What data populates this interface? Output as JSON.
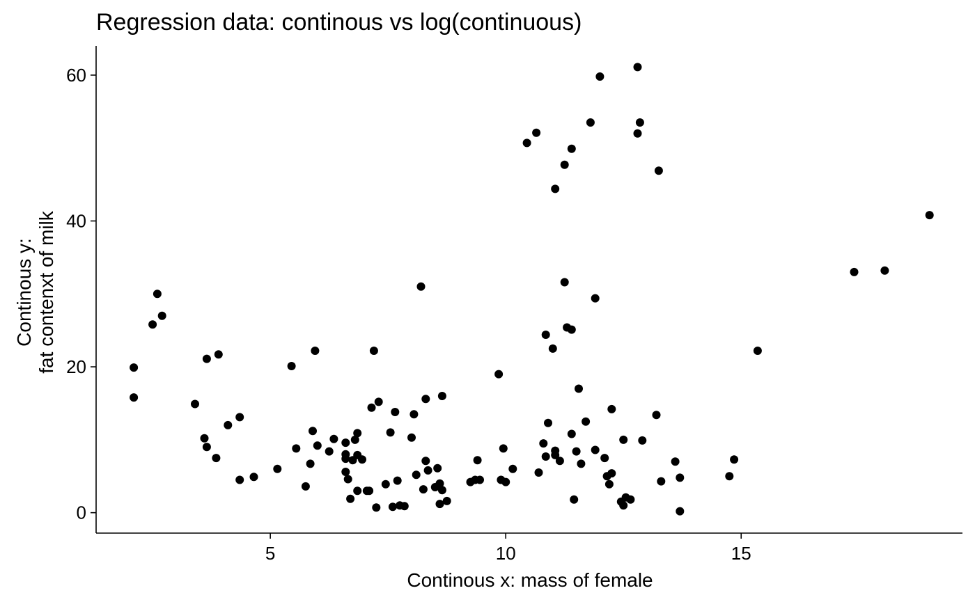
{
  "chart_data": {
    "type": "scatter",
    "title": "Regression data: continous vs log(continuous)",
    "xlabel": "Continous x: mass of female",
    "ylabel_lines": [
      "Continous y:",
      "fat contenxt of milk"
    ],
    "x_ticks": [
      5,
      10,
      15
    ],
    "y_ticks": [
      0,
      20,
      40,
      60
    ],
    "xlim": [
      1.3,
      19.7
    ],
    "ylim": [
      -2.8,
      64.0
    ],
    "grid": false,
    "legend": "none",
    "point_color": "#000000",
    "points": [
      {
        "x": 2.1,
        "y": 19.9
      },
      {
        "x": 2.1,
        "y": 15.8
      },
      {
        "x": 2.5,
        "y": 25.8
      },
      {
        "x": 2.6,
        "y": 30.0
      },
      {
        "x": 2.7,
        "y": 27.0
      },
      {
        "x": 3.4,
        "y": 14.9
      },
      {
        "x": 3.6,
        "y": 10.2
      },
      {
        "x": 3.65,
        "y": 21.1
      },
      {
        "x": 3.65,
        "y": 9.0
      },
      {
        "x": 3.85,
        "y": 7.5
      },
      {
        "x": 3.9,
        "y": 21.7
      },
      {
        "x": 4.1,
        "y": 12.0
      },
      {
        "x": 4.35,
        "y": 13.1
      },
      {
        "x": 4.35,
        "y": 4.5
      },
      {
        "x": 4.65,
        "y": 4.9
      },
      {
        "x": 5.15,
        "y": 6.0
      },
      {
        "x": 5.45,
        "y": 20.1
      },
      {
        "x": 5.55,
        "y": 8.8
      },
      {
        "x": 5.75,
        "y": 3.6
      },
      {
        "x": 5.85,
        "y": 6.7
      },
      {
        "x": 5.9,
        "y": 11.2
      },
      {
        "x": 5.95,
        "y": 22.2
      },
      {
        "x": 6.0,
        "y": 9.2
      },
      {
        "x": 6.25,
        "y": 8.4
      },
      {
        "x": 6.35,
        "y": 10.1
      },
      {
        "x": 6.6,
        "y": 9.6
      },
      {
        "x": 6.6,
        "y": 8.0
      },
      {
        "x": 6.6,
        "y": 7.4
      },
      {
        "x": 6.6,
        "y": 5.6
      },
      {
        "x": 6.65,
        "y": 4.6
      },
      {
        "x": 6.7,
        "y": 1.9
      },
      {
        "x": 6.75,
        "y": 7.2
      },
      {
        "x": 6.8,
        "y": 10.0
      },
      {
        "x": 6.85,
        "y": 10.9
      },
      {
        "x": 6.85,
        "y": 7.9
      },
      {
        "x": 6.85,
        "y": 3.0
      },
      {
        "x": 6.95,
        "y": 7.3
      },
      {
        "x": 7.05,
        "y": 3.0
      },
      {
        "x": 7.1,
        "y": 3.0
      },
      {
        "x": 7.15,
        "y": 14.4
      },
      {
        "x": 7.2,
        "y": 22.2
      },
      {
        "x": 7.25,
        "y": 0.7
      },
      {
        "x": 7.3,
        "y": 15.2
      },
      {
        "x": 7.45,
        "y": 3.9
      },
      {
        "x": 7.55,
        "y": 11.0
      },
      {
        "x": 7.6,
        "y": 0.8
      },
      {
        "x": 7.65,
        "y": 13.8
      },
      {
        "x": 7.7,
        "y": 4.4
      },
      {
        "x": 7.75,
        "y": 1.0
      },
      {
        "x": 7.85,
        "y": 0.9
      },
      {
        "x": 8.0,
        "y": 10.3
      },
      {
        "x": 8.05,
        "y": 13.5
      },
      {
        "x": 8.1,
        "y": 5.2
      },
      {
        "x": 8.2,
        "y": 31.0
      },
      {
        "x": 8.25,
        "y": 3.2
      },
      {
        "x": 8.3,
        "y": 15.6
      },
      {
        "x": 8.3,
        "y": 7.1
      },
      {
        "x": 8.35,
        "y": 5.8
      },
      {
        "x": 8.5,
        "y": 3.5
      },
      {
        "x": 8.55,
        "y": 6.1
      },
      {
        "x": 8.6,
        "y": 1.2
      },
      {
        "x": 8.6,
        "y": 4.0
      },
      {
        "x": 8.65,
        "y": 16.0
      },
      {
        "x": 8.65,
        "y": 3.1
      },
      {
        "x": 8.75,
        "y": 1.6
      },
      {
        "x": 9.25,
        "y": 4.2
      },
      {
        "x": 9.35,
        "y": 4.5
      },
      {
        "x": 9.4,
        "y": 7.2
      },
      {
        "x": 9.45,
        "y": 4.5
      },
      {
        "x": 9.85,
        "y": 19.0
      },
      {
        "x": 9.9,
        "y": 4.5
      },
      {
        "x": 9.95,
        "y": 8.8
      },
      {
        "x": 10.0,
        "y": 4.2
      },
      {
        "x": 10.15,
        "y": 6.0
      },
      {
        "x": 10.45,
        "y": 50.7
      },
      {
        "x": 10.65,
        "y": 52.1
      },
      {
        "x": 10.7,
        "y": 5.5
      },
      {
        "x": 10.8,
        "y": 9.5
      },
      {
        "x": 10.85,
        "y": 24.4
      },
      {
        "x": 10.85,
        "y": 7.7
      },
      {
        "x": 10.9,
        "y": 12.3
      },
      {
        "x": 11.0,
        "y": 22.5
      },
      {
        "x": 11.05,
        "y": 44.4
      },
      {
        "x": 11.05,
        "y": 8.5
      },
      {
        "x": 11.05,
        "y": 7.9
      },
      {
        "x": 11.15,
        "y": 7.1
      },
      {
        "x": 11.25,
        "y": 31.6
      },
      {
        "x": 11.25,
        "y": 47.7
      },
      {
        "x": 11.3,
        "y": 25.4
      },
      {
        "x": 11.4,
        "y": 49.9
      },
      {
        "x": 11.4,
        "y": 25.1
      },
      {
        "x": 11.4,
        "y": 10.8
      },
      {
        "x": 11.45,
        "y": 1.8
      },
      {
        "x": 11.5,
        "y": 8.4
      },
      {
        "x": 11.55,
        "y": 17.0
      },
      {
        "x": 11.6,
        "y": 6.7
      },
      {
        "x": 11.7,
        "y": 12.5
      },
      {
        "x": 11.8,
        "y": 53.5
      },
      {
        "x": 11.9,
        "y": 29.4
      },
      {
        "x": 11.9,
        "y": 8.6
      },
      {
        "x": 12.0,
        "y": 59.8
      },
      {
        "x": 12.1,
        "y": 7.5
      },
      {
        "x": 12.15,
        "y": 5.0
      },
      {
        "x": 12.2,
        "y": 3.9
      },
      {
        "x": 12.25,
        "y": 14.2
      },
      {
        "x": 12.25,
        "y": 5.4
      },
      {
        "x": 12.45,
        "y": 1.5
      },
      {
        "x": 12.5,
        "y": 1.0
      },
      {
        "x": 12.5,
        "y": 10.0
      },
      {
        "x": 12.55,
        "y": 2.1
      },
      {
        "x": 12.65,
        "y": 1.8
      },
      {
        "x": 12.8,
        "y": 61.1
      },
      {
        "x": 12.8,
        "y": 52.0
      },
      {
        "x": 12.85,
        "y": 53.5
      },
      {
        "x": 12.9,
        "y": 9.9
      },
      {
        "x": 13.2,
        "y": 13.4
      },
      {
        "x": 13.25,
        "y": 46.9
      },
      {
        "x": 13.3,
        "y": 4.3
      },
      {
        "x": 13.6,
        "y": 7.0
      },
      {
        "x": 13.7,
        "y": 4.8
      },
      {
        "x": 13.7,
        "y": 0.2
      },
      {
        "x": 14.75,
        "y": 5.0
      },
      {
        "x": 14.85,
        "y": 7.3
      },
      {
        "x": 15.35,
        "y": 22.2
      },
      {
        "x": 17.4,
        "y": 33.0
      },
      {
        "x": 18.05,
        "y": 33.2
      },
      {
        "x": 19.0,
        "y": 40.8
      }
    ]
  }
}
